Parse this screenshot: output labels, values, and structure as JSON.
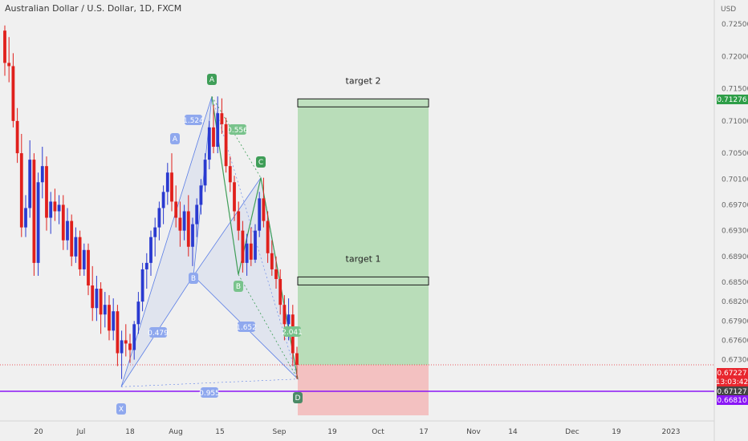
{
  "header": {
    "title": "Australian Dollar / U.S. Dollar, 1D, FXCM",
    "currency": "USD"
  },
  "chart_data": {
    "type": "candlestick",
    "ylim": [
      0.6635,
      0.7285
    ],
    "y_ticks": [
      "0.72500",
      "0.72000",
      "0.71500",
      "0.71000",
      "0.70500",
      "0.70100",
      "0.69700",
      "0.69300",
      "0.68900",
      "0.68500",
      "0.68200",
      "0.67900",
      "0.67600",
      "0.67300",
      "0.66810"
    ],
    "x_ticks": [
      "20",
      "Jul",
      "18",
      "Aug",
      "15",
      "Sep",
      "19",
      "Oct",
      "17",
      "Nov",
      "14",
      "Dec",
      "19",
      "2023"
    ],
    "candles": [
      {
        "o": 0.724,
        "h": 0.7248,
        "l": 0.717,
        "c": 0.719
      },
      {
        "o": 0.719,
        "h": 0.723,
        "l": 0.716,
        "c": 0.7185
      },
      {
        "o": 0.7185,
        "h": 0.7205,
        "l": 0.709,
        "c": 0.71
      },
      {
        "o": 0.71,
        "h": 0.712,
        "l": 0.7035,
        "c": 0.705
      },
      {
        "o": 0.705,
        "h": 0.708,
        "l": 0.692,
        "c": 0.6935
      },
      {
        "o": 0.6935,
        "h": 0.6985,
        "l": 0.692,
        "c": 0.6965
      },
      {
        "o": 0.6965,
        "h": 0.707,
        "l": 0.695,
        "c": 0.704
      },
      {
        "o": 0.704,
        "h": 0.705,
        "l": 0.686,
        "c": 0.688
      },
      {
        "o": 0.688,
        "h": 0.702,
        "l": 0.686,
        "c": 0.7005
      },
      {
        "o": 0.7005,
        "h": 0.706,
        "l": 0.698,
        "c": 0.703
      },
      {
        "o": 0.703,
        "h": 0.7045,
        "l": 0.693,
        "c": 0.695
      },
      {
        "o": 0.695,
        "h": 0.699,
        "l": 0.6925,
        "c": 0.6975
      },
      {
        "o": 0.6975,
        "h": 0.6995,
        "l": 0.6945,
        "c": 0.696
      },
      {
        "o": 0.696,
        "h": 0.6985,
        "l": 0.694,
        "c": 0.697
      },
      {
        "o": 0.697,
        "h": 0.6985,
        "l": 0.69,
        "c": 0.6915
      },
      {
        "o": 0.6915,
        "h": 0.6965,
        "l": 0.69,
        "c": 0.6945
      },
      {
        "o": 0.6945,
        "h": 0.6955,
        "l": 0.6875,
        "c": 0.689
      },
      {
        "o": 0.689,
        "h": 0.6935,
        "l": 0.688,
        "c": 0.692
      },
      {
        "o": 0.692,
        "h": 0.693,
        "l": 0.686,
        "c": 0.687
      },
      {
        "o": 0.687,
        "h": 0.691,
        "l": 0.686,
        "c": 0.69
      },
      {
        "o": 0.69,
        "h": 0.691,
        "l": 0.683,
        "c": 0.6845
      },
      {
        "o": 0.6845,
        "h": 0.6875,
        "l": 0.679,
        "c": 0.681
      },
      {
        "o": 0.681,
        "h": 0.686,
        "l": 0.679,
        "c": 0.684
      },
      {
        "o": 0.684,
        "h": 0.685,
        "l": 0.677,
        "c": 0.68
      },
      {
        "o": 0.68,
        "h": 0.6835,
        "l": 0.678,
        "c": 0.6815
      },
      {
        "o": 0.6815,
        "h": 0.683,
        "l": 0.676,
        "c": 0.6775
      },
      {
        "o": 0.6775,
        "h": 0.6825,
        "l": 0.676,
        "c": 0.6805
      },
      {
        "o": 0.6805,
        "h": 0.6815,
        "l": 0.672,
        "c": 0.674
      },
      {
        "o": 0.674,
        "h": 0.6775,
        "l": 0.67,
        "c": 0.676
      },
      {
        "o": 0.676,
        "h": 0.6785,
        "l": 0.6735,
        "c": 0.6755
      },
      {
        "o": 0.6755,
        "h": 0.677,
        "l": 0.6725,
        "c": 0.6745
      },
      {
        "o": 0.6745,
        "h": 0.679,
        "l": 0.673,
        "c": 0.6785
      },
      {
        "o": 0.6785,
        "h": 0.6835,
        "l": 0.677,
        "c": 0.682
      },
      {
        "o": 0.682,
        "h": 0.688,
        "l": 0.6805,
        "c": 0.687
      },
      {
        "o": 0.687,
        "h": 0.6895,
        "l": 0.684,
        "c": 0.688
      },
      {
        "o": 0.688,
        "h": 0.693,
        "l": 0.686,
        "c": 0.692
      },
      {
        "o": 0.692,
        "h": 0.695,
        "l": 0.689,
        "c": 0.6935
      },
      {
        "o": 0.6935,
        "h": 0.6975,
        "l": 0.6915,
        "c": 0.6965
      },
      {
        "o": 0.6965,
        "h": 0.7,
        "l": 0.694,
        "c": 0.699
      },
      {
        "o": 0.699,
        "h": 0.7035,
        "l": 0.697,
        "c": 0.702
      },
      {
        "o": 0.702,
        "h": 0.705,
        "l": 0.696,
        "c": 0.6975
      },
      {
        "o": 0.6975,
        "h": 0.7,
        "l": 0.6935,
        "c": 0.695
      },
      {
        "o": 0.695,
        "h": 0.6975,
        "l": 0.6905,
        "c": 0.693
      },
      {
        "o": 0.693,
        "h": 0.697,
        "l": 0.6915,
        "c": 0.696
      },
      {
        "o": 0.696,
        "h": 0.6985,
        "l": 0.689,
        "c": 0.6905
      },
      {
        "o": 0.6905,
        "h": 0.695,
        "l": 0.6875,
        "c": 0.694
      },
      {
        "o": 0.694,
        "h": 0.698,
        "l": 0.692,
        "c": 0.697
      },
      {
        "o": 0.697,
        "h": 0.701,
        "l": 0.6955,
        "c": 0.7
      },
      {
        "o": 0.7,
        "h": 0.705,
        "l": 0.699,
        "c": 0.704
      },
      {
        "o": 0.704,
        "h": 0.71,
        "l": 0.7025,
        "c": 0.709
      },
      {
        "o": 0.709,
        "h": 0.7125,
        "l": 0.705,
        "c": 0.706
      },
      {
        "o": 0.706,
        "h": 0.7138,
        "l": 0.705,
        "c": 0.7112
      },
      {
        "o": 0.7112,
        "h": 0.7135,
        "l": 0.708,
        "c": 0.7095
      },
      {
        "o": 0.7095,
        "h": 0.7105,
        "l": 0.702,
        "c": 0.703
      },
      {
        "o": 0.703,
        "h": 0.7045,
        "l": 0.699,
        "c": 0.7005
      },
      {
        "o": 0.7005,
        "h": 0.7015,
        "l": 0.6945,
        "c": 0.696
      },
      {
        "o": 0.696,
        "h": 0.6975,
        "l": 0.6915,
        "c": 0.693
      },
      {
        "o": 0.693,
        "h": 0.6945,
        "l": 0.6865,
        "c": 0.688
      },
      {
        "o": 0.688,
        "h": 0.6925,
        "l": 0.686,
        "c": 0.691
      },
      {
        "o": 0.691,
        "h": 0.6935,
        "l": 0.6875,
        "c": 0.6885
      },
      {
        "o": 0.6885,
        "h": 0.694,
        "l": 0.688,
        "c": 0.693
      },
      {
        "o": 0.693,
        "h": 0.699,
        "l": 0.692,
        "c": 0.698
      },
      {
        "o": 0.698,
        "h": 0.7012,
        "l": 0.6935,
        "c": 0.6945
      },
      {
        "o": 0.6945,
        "h": 0.696,
        "l": 0.688,
        "c": 0.6895
      },
      {
        "o": 0.6895,
        "h": 0.6915,
        "l": 0.686,
        "c": 0.687
      },
      {
        "o": 0.687,
        "h": 0.689,
        "l": 0.684,
        "c": 0.6855
      },
      {
        "o": 0.6855,
        "h": 0.687,
        "l": 0.68,
        "c": 0.6815
      },
      {
        "o": 0.6815,
        "h": 0.683,
        "l": 0.676,
        "c": 0.6785
      },
      {
        "o": 0.6785,
        "h": 0.6825,
        "l": 0.676,
        "c": 0.68
      },
      {
        "o": 0.68,
        "h": 0.6815,
        "l": 0.672,
        "c": 0.674
      },
      {
        "o": 0.674,
        "h": 0.675,
        "l": 0.67,
        "c": 0.6722
      }
    ],
    "harmonic_pattern": {
      "points": [
        {
          "label": "X",
          "price": 0.6688
        },
        {
          "label": "A",
          "price": 0.7138
        },
        {
          "label": "B",
          "price": 0.686
        },
        {
          "label": "C",
          "price": 0.7012
        },
        {
          "label": "D",
          "price": 0.67
        }
      ],
      "ratios": [
        "1.524",
        "0.479",
        "0.556",
        "1.652",
        "2.041",
        "0.955"
      ],
      "pattern_letters": [
        "A",
        "B",
        "C",
        "D"
      ]
    },
    "position": {
      "entry": 0.6722,
      "stop": 0.6681,
      "target1": 0.6852,
      "target2": 0.7128,
      "target1_label": "target 1",
      "target2_label": "target 2"
    },
    "price_tags": [
      {
        "value": "0.71276",
        "color": "#2e9e48"
      },
      {
        "value": "0.67227",
        "color": "#e8262e"
      },
      {
        "value": "13:03:42",
        "color": "#e8262e"
      },
      {
        "value": "0.67127",
        "color": "#444444"
      },
      {
        "value": "0.66810",
        "color": "#8a16f5"
      }
    ],
    "colors": {
      "up": "#2a3ad0",
      "down": "#e0201c",
      "green_zone": "#b9ddb9",
      "red_zone": "#f3c1c1",
      "support": "#8a16f5",
      "pattern_blue": "#5b7ee6",
      "pattern_green": "#3f9e58"
    }
  }
}
